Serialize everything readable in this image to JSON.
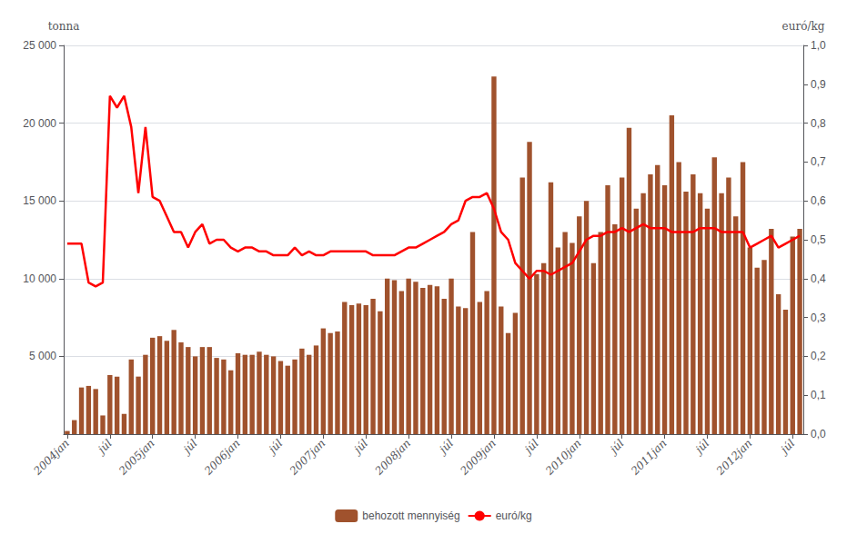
{
  "chart_data": {
    "type": "bar",
    "ylabel": "tonna",
    "y2label": "euró/kg",
    "categories": [
      "2004jan",
      null,
      null,
      null,
      null,
      null,
      "júl",
      null,
      null,
      null,
      null,
      null,
      "2005jan",
      null,
      null,
      null,
      null,
      null,
      "júl",
      null,
      null,
      null,
      null,
      null,
      "2006jan",
      null,
      null,
      null,
      null,
      null,
      "júl",
      null,
      null,
      null,
      null,
      null,
      "2007jan",
      null,
      null,
      null,
      null,
      null,
      "júl",
      null,
      null,
      null,
      null,
      null,
      "2008jan",
      null,
      null,
      null,
      null,
      null,
      "júl",
      null,
      null,
      null,
      null,
      null,
      "2009jan",
      null,
      null,
      null,
      null,
      null,
      "júl",
      null,
      null,
      null,
      null,
      null,
      "2010jan",
      null,
      null,
      null,
      null,
      null,
      "júl",
      null,
      null,
      null,
      null,
      null,
      "2011jan",
      null,
      null,
      null,
      null,
      null,
      "júl",
      null,
      null,
      null,
      null,
      null,
      "2012jan",
      null,
      null,
      null,
      null,
      null,
      "júl",
      null
    ],
    "series": [
      {
        "name": "behozott mennyiség",
        "type": "bar",
        "color": "#A0522D",
        "values": [
          200,
          900,
          3000,
          3100,
          2900,
          1200,
          3800,
          3700,
          1300,
          4800,
          3700,
          5100,
          6200,
          6300,
          6000,
          6700,
          5900,
          5600,
          5000,
          5600,
          5600,
          4900,
          4800,
          4100,
          5200,
          5100,
          5100,
          5300,
          5100,
          5000,
          4700,
          4400,
          4800,
          5500,
          5100,
          5700,
          6800,
          6500,
          6600,
          8500,
          8300,
          8400,
          8300,
          8700,
          7900,
          10000,
          9900,
          9200,
          10000,
          9800,
          9400,
          9600,
          9500,
          8700,
          10000,
          8200,
          8100,
          13000,
          8500,
          9200,
          23000,
          8200,
          6500,
          7800,
          16500,
          18800,
          10300,
          11000,
          16200,
          12000,
          13000,
          12300,
          14000,
          15000,
          11000,
          13000,
          16000,
          13500,
          16500,
          19700,
          14500,
          15500,
          16700,
          17300,
          16000,
          20500,
          17500,
          15600,
          16700,
          15500,
          14500,
          17800,
          15500,
          16500,
          14000,
          17500,
          12000,
          10700,
          11200,
          13200,
          9000,
          8000,
          12700,
          13200
        ]
      },
      {
        "name": "euró/kg",
        "type": "line",
        "axis": "y2",
        "color": "#FF0000",
        "values": [
          0.49,
          0.49,
          0.49,
          0.39,
          0.38,
          0.39,
          0.87,
          0.84,
          0.87,
          0.79,
          0.62,
          0.79,
          0.61,
          0.6,
          0.56,
          0.52,
          0.52,
          0.48,
          0.52,
          0.54,
          0.49,
          0.5,
          0.5,
          0.48,
          0.47,
          0.48,
          0.48,
          0.47,
          0.47,
          0.46,
          0.46,
          0.46,
          0.48,
          0.46,
          0.47,
          0.46,
          0.46,
          0.47,
          0.47,
          0.47,
          0.47,
          0.47,
          0.47,
          0.46,
          0.46,
          0.46,
          0.46,
          0.47,
          0.48,
          0.48,
          0.49,
          0.5,
          0.51,
          0.52,
          0.54,
          0.55,
          0.6,
          0.61,
          0.61,
          0.62,
          0.58,
          0.52,
          0.5,
          0.44,
          0.42,
          0.4,
          0.42,
          0.42,
          0.41,
          0.42,
          0.43,
          0.44,
          0.47,
          0.5,
          0.51,
          0.51,
          0.52,
          0.52,
          0.53,
          0.52,
          0.53,
          0.54,
          0.53,
          0.53,
          0.53,
          0.52,
          0.52,
          0.52,
          0.52,
          0.53,
          0.53,
          0.53,
          0.52,
          0.52,
          0.52,
          0.52,
          0.48,
          0.49,
          0.5,
          0.51,
          0.48,
          0.49,
          0.5,
          0.51
        ]
      }
    ],
    "ylim": [
      0,
      25000
    ],
    "yticks": [
      {
        "value": 5000,
        "label": "5 000"
      },
      {
        "value": 10000,
        "label": "10 000"
      },
      {
        "value": 15000,
        "label": "15 000"
      },
      {
        "value": 20000,
        "label": "20 000"
      },
      {
        "value": 25000,
        "label": "25 000"
      }
    ],
    "y2lim": [
      0,
      1.0
    ],
    "y2ticks": [
      {
        "value": 0,
        "label": "0,0"
      },
      {
        "value": 0.1,
        "label": "0,1"
      },
      {
        "value": 0.2,
        "label": "0,2"
      },
      {
        "value": 0.3,
        "label": "0,3"
      },
      {
        "value": 0.4,
        "label": "0,4"
      },
      {
        "value": 0.5,
        "label": "0,5"
      },
      {
        "value": 0.6,
        "label": "0,6"
      },
      {
        "value": 0.7,
        "label": "0,7"
      },
      {
        "value": 0.8,
        "label": "0,8"
      },
      {
        "value": 0.9,
        "label": "0,9"
      },
      {
        "value": 1.0,
        "label": "1,0"
      }
    ],
    "grid": true,
    "legend": "bottom"
  }
}
